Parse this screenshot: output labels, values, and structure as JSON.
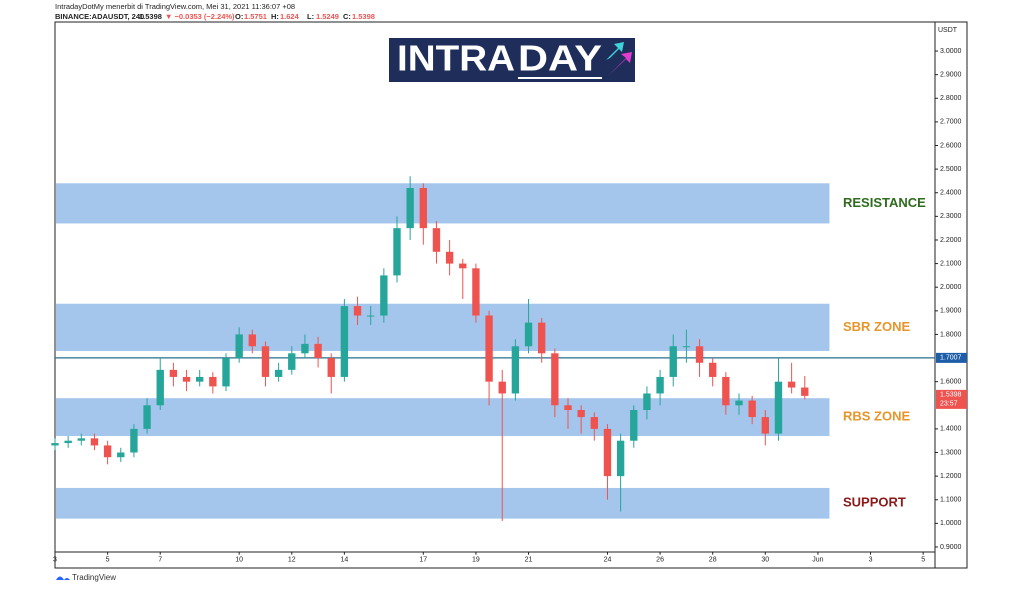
{
  "header": {
    "line1": "IntradayDotMy menerbit di TradingView.com, Mei 31, 2021 11:36:07 +08",
    "symbol": "BINANCE:ADAUSDT, 240",
    "last": 1.5398,
    "change": "▼ −0.0353 (−2.24%)",
    "ohlc": [
      {
        "label": "O:",
        "value": 1.5751
      },
      {
        "label": "H:",
        "value": 1.624
      },
      {
        "label": "L:",
        "value": 1.5249
      },
      {
        "label": "C:",
        "value": 1.5398
      }
    ]
  },
  "logo": {
    "left": "INTRA",
    "right": "DAY"
  },
  "footer": "TradingView",
  "chart_data": {
    "type": "candlestick",
    "currency": "USDT",
    "x": [
      3,
      3.5,
      4,
      4.5,
      5,
      5.5,
      6,
      6.5,
      7,
      7.5,
      8,
      8.5,
      9,
      9.5,
      10,
      10.5,
      11,
      11.5,
      12,
      12.5,
      13,
      13.5,
      14,
      14.5,
      15,
      15.5,
      16,
      16.5,
      17,
      17.5,
      18,
      18.5,
      19,
      19.5,
      20,
      20.5,
      21,
      21.5,
      22,
      22.5,
      23,
      23.5,
      24,
      24.5,
      25,
      25.5,
      26,
      26.5,
      27,
      27.5,
      28,
      28.5,
      29,
      29.5,
      30,
      30.5,
      31,
      31.5
    ],
    "open": [
      1.33,
      1.34,
      1.35,
      1.36,
      1.33,
      1.28,
      1.3,
      1.4,
      1.5,
      1.65,
      1.62,
      1.6,
      1.62,
      1.58,
      1.7,
      1.8,
      1.75,
      1.62,
      1.65,
      1.72,
      1.76,
      1.7,
      1.62,
      1.92,
      1.88,
      1.88,
      2.05,
      2.25,
      2.42,
      2.25,
      2.15,
      2.1,
      2.08,
      1.88,
      1.6,
      1.55,
      1.75,
      1.85,
      1.72,
      1.5,
      1.48,
      1.45,
      1.4,
      1.2,
      1.35,
      1.48,
      1.55,
      1.62,
      1.75,
      1.75,
      1.68,
      1.62,
      1.5,
      1.52,
      1.45,
      1.38,
      1.6,
      1.5751
    ],
    "close": [
      1.34,
      1.35,
      1.36,
      1.33,
      1.28,
      1.3,
      1.4,
      1.5,
      1.65,
      1.62,
      1.6,
      1.62,
      1.58,
      1.7,
      1.8,
      1.75,
      1.62,
      1.65,
      1.72,
      1.76,
      1.7,
      1.62,
      1.92,
      1.88,
      1.88,
      2.05,
      2.25,
      2.42,
      2.25,
      2.15,
      2.1,
      2.08,
      1.88,
      1.6,
      1.55,
      1.75,
      1.85,
      1.72,
      1.5,
      1.48,
      1.45,
      1.4,
      1.2,
      1.35,
      1.48,
      1.55,
      1.62,
      1.75,
      1.75,
      1.68,
      1.62,
      1.5,
      1.52,
      1.45,
      1.38,
      1.6,
      1.5751,
      1.5398
    ],
    "high": [
      1.36,
      1.37,
      1.38,
      1.38,
      1.35,
      1.32,
      1.42,
      1.53,
      1.7,
      1.68,
      1.65,
      1.65,
      1.64,
      1.72,
      1.83,
      1.82,
      1.77,
      1.68,
      1.75,
      1.8,
      1.79,
      1.72,
      1.95,
      1.96,
      1.92,
      2.08,
      2.3,
      2.47,
      2.44,
      2.28,
      2.2,
      2.12,
      2.1,
      1.9,
      1.65,
      1.78,
      1.95,
      1.87,
      1.74,
      1.53,
      1.5,
      1.47,
      1.42,
      1.38,
      1.5,
      1.58,
      1.65,
      1.8,
      1.82,
      1.78,
      1.7,
      1.64,
      1.55,
      1.54,
      1.48,
      1.7,
      1.68,
      1.624
    ],
    "low": [
      1.31,
      1.32,
      1.33,
      1.31,
      1.25,
      1.26,
      1.28,
      1.38,
      1.48,
      1.58,
      1.56,
      1.58,
      1.55,
      1.56,
      1.68,
      1.72,
      1.58,
      1.6,
      1.63,
      1.7,
      1.66,
      1.55,
      1.6,
      1.84,
      1.84,
      1.85,
      2.02,
      2.2,
      2.18,
      2.1,
      2.05,
      1.95,
      1.85,
      1.5,
      1.01,
      1.52,
      1.72,
      1.68,
      1.45,
      1.4,
      1.38,
      1.35,
      1.1,
      1.05,
      1.32,
      1.44,
      1.5,
      1.58,
      1.68,
      1.62,
      1.58,
      1.46,
      1.46,
      1.42,
      1.33,
      1.35,
      1.55,
      1.5249
    ],
    "up_color": "#26a69a",
    "down_color": "#ef5350",
    "zones": [
      {
        "name": "RESISTANCE",
        "from": 2.27,
        "to": 2.44,
        "color": "#2f6b1f"
      },
      {
        "name": "SBR ZONE",
        "from": 1.73,
        "to": 1.93,
        "color": "#e8952b"
      },
      {
        "name": "RBS ZONE",
        "from": 1.37,
        "to": 1.53,
        "color": "#e8952b"
      },
      {
        "name": "SUPPORT",
        "from": 1.02,
        "to": 1.15,
        "color": "#8b1a1a"
      }
    ],
    "zone_end": 32.4,
    "zone_color": "#a4c6ec",
    "hline": {
      "value": 1.7007,
      "label": "1.7007",
      "color": "#2a6f8f"
    },
    "last_label": "1.5398",
    "countdown": "23:57",
    "xlim": [
      3,
      36.45
    ],
    "xticks": [
      3,
      5,
      7,
      10,
      12,
      14,
      17,
      19,
      21,
      24,
      26,
      28,
      30,
      {
        "value": 32,
        "label": "Jun"
      },
      {
        "value": 34,
        "label": "3"
      },
      {
        "value": 36,
        "label": "5"
      }
    ],
    "ylim": [
      0.88,
      3.12
    ],
    "yticks": [
      {
        "value": 0.9,
        "label": "0.9000"
      },
      {
        "value": 1.0,
        "label": "1.0000"
      },
      {
        "value": 1.1,
        "label": "1.1000"
      },
      {
        "value": 1.2,
        "label": "1.2000"
      },
      {
        "value": 1.3,
        "label": "1.3000"
      },
      {
        "value": 1.4,
        "label": "1.4000"
      },
      {
        "value": 1.6,
        "label": "1.6000"
      },
      {
        "value": 1.8,
        "label": "1.8000"
      },
      {
        "value": 1.9,
        "label": "1.9000"
      },
      {
        "value": 2.0,
        "label": "2.0000"
      },
      {
        "value": 2.1,
        "label": "2.1000"
      },
      {
        "value": 2.2,
        "label": "2.2000"
      },
      {
        "value": 2.3,
        "label": "2.3000"
      },
      {
        "value": 2.4,
        "label": "2.4000"
      },
      {
        "value": 2.5,
        "label": "2.5000"
      },
      {
        "value": 2.6,
        "label": "2.6000"
      },
      {
        "value": 2.7,
        "label": "2.7000"
      },
      {
        "value": 2.8,
        "label": "2.8000"
      },
      {
        "value": 2.9,
        "label": "2.9000"
      },
      {
        "value": 3.0,
        "label": "3.0000"
      }
    ]
  }
}
